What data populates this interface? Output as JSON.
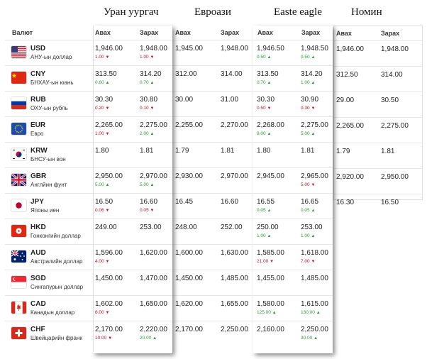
{
  "banks": [
    {
      "name": "Уран уургач",
      "buy": "Авах",
      "sell": "Зарах"
    },
    {
      "name": "Евроази",
      "buy": "Авах",
      "sell": "Зарах"
    },
    {
      "name": "Easte eagle",
      "buy": "Авах",
      "sell": "Зарах"
    },
    {
      "name": "Номин",
      "buy": "Авах",
      "sell": "Зарах"
    }
  ],
  "currency_header": "Валют",
  "currencies": [
    {
      "code": "USD",
      "name": "АНУ-ын доллар",
      "flag": "us-flag-icon"
    },
    {
      "code": "CNY",
      "name": "БНХАУ-ын юань",
      "flag": "cn-flag-icon"
    },
    {
      "code": "RUB",
      "name": "ОХУ-ын рубль",
      "flag": "ru-flag-icon"
    },
    {
      "code": "EUR",
      "name": "Евро",
      "flag": "eu-flag-icon"
    },
    {
      "code": "KRW",
      "name": "БНСУ-ын вон",
      "flag": "kr-flag-icon"
    },
    {
      "code": "GBR",
      "name": "Англйин фунт",
      "flag": "gb-flag-icon"
    },
    {
      "code": "JPY",
      "name": "Японы иен",
      "flag": "jp-flag-icon"
    },
    {
      "code": "HKD",
      "name": "Гонконгийн доллар",
      "flag": "hk-flag-icon"
    },
    {
      "code": "AUD",
      "name": "Австралийн доллар",
      "flag": "au-flag-icon"
    },
    {
      "code": "SGD",
      "name": "Сингапурын доллар",
      "flag": "sg-flag-icon"
    },
    {
      "code": "CAD",
      "name": "Канадын доллар",
      "flag": "ca-flag-icon"
    },
    {
      "code": "CHF",
      "name": "Швейцарийн франк",
      "flag": "ch-flag-icon"
    }
  ],
  "rates": {
    "uran": [
      {
        "buy": "1,946.00",
        "buy_chg": "1.00",
        "buy_dir": "down",
        "sell": "1,948.00",
        "sell_chg": "1.00",
        "sell_dir": "down"
      },
      {
        "buy": "313.50",
        "buy_chg": "0.60",
        "buy_dir": "up",
        "sell": "314.20",
        "sell_chg": "0.70",
        "sell_dir": "up"
      },
      {
        "buy": "30.30",
        "buy_chg": "0.20",
        "buy_dir": "down",
        "sell": "30.80",
        "sell_chg": "0.10",
        "sell_dir": "down"
      },
      {
        "buy": "2,265.00",
        "buy_chg": "1.00",
        "buy_dir": "down",
        "sell": "2,275.00",
        "sell_chg": "2.00",
        "sell_dir": "up"
      },
      {
        "buy": "1.80",
        "buy_chg": "",
        "buy_dir": "",
        "sell": "1.81",
        "sell_chg": "",
        "sell_dir": ""
      },
      {
        "buy": "2,950.00",
        "buy_chg": "5.00",
        "buy_dir": "up",
        "sell": "2,970.00",
        "sell_chg": "5.00",
        "sell_dir": "up"
      },
      {
        "buy": "16.50",
        "buy_chg": "0.06",
        "buy_dir": "down",
        "sell": "16.60",
        "sell_chg": "0.05",
        "sell_dir": "down"
      },
      {
        "buy": "249.00",
        "buy_chg": "",
        "buy_dir": "",
        "sell": "253.00",
        "sell_chg": "",
        "sell_dir": ""
      },
      {
        "buy": "1,596.00",
        "buy_chg": "4.00",
        "buy_dir": "down",
        "sell": "1,620.00",
        "sell_chg": "",
        "sell_dir": ""
      },
      {
        "buy": "1,450.00",
        "buy_chg": "",
        "buy_dir": "",
        "sell": "1,470.00",
        "sell_chg": "",
        "sell_dir": ""
      },
      {
        "buy": "1,602.00",
        "buy_chg": "8.00",
        "buy_dir": "down",
        "sell": "1,650.00",
        "sell_chg": "",
        "sell_dir": ""
      },
      {
        "buy": "2,170.00",
        "buy_chg": "10.00",
        "buy_dir": "down",
        "sell": "2,220.00",
        "sell_chg": "20.00",
        "sell_dir": "up"
      }
    ],
    "euroasia": [
      {
        "buy": "1,945.00",
        "sell": "1,948.00"
      },
      {
        "buy": "312.00",
        "sell": "314.00"
      },
      {
        "buy": "30.00",
        "sell": "31.00"
      },
      {
        "buy": "2,255.00",
        "sell": "2,270.00"
      },
      {
        "buy": "1.79",
        "sell": "1.81"
      },
      {
        "buy": "2,930.00",
        "sell": "2,970.00"
      },
      {
        "buy": "16.45",
        "sell": "16.60"
      },
      {
        "buy": "248.00",
        "sell": "252.00"
      },
      {
        "buy": "1,600.00",
        "sell": "1,630.00"
      },
      {
        "buy": "1,450.00",
        "sell": "1,485.00"
      },
      {
        "buy": "1,620.00",
        "sell": "1,655.00"
      },
      {
        "buy": "2,170.00",
        "sell": "2,250.00"
      }
    ],
    "eagle": [
      {
        "buy": "1,946.50",
        "buy_chg": "0.50",
        "buy_dir": "up",
        "sell": "1,948.50",
        "sell_chg": "0.50",
        "sell_dir": "up"
      },
      {
        "buy": "313.50",
        "buy_chg": "0.70",
        "buy_dir": "up",
        "sell": "314.20",
        "sell_chg": "1.00",
        "sell_dir": "up"
      },
      {
        "buy": "30.30",
        "buy_chg": "0.50",
        "buy_dir": "down",
        "sell": "30.90",
        "sell_chg": "0.30",
        "sell_dir": "down"
      },
      {
        "buy": "2,268.00",
        "buy_chg": "8.00",
        "buy_dir": "up",
        "sell": "2,275.00",
        "sell_chg": "5.00",
        "sell_dir": "up"
      },
      {
        "buy": "1.80",
        "buy_chg": "",
        "buy_dir": "",
        "sell": "1.81",
        "sell_chg": "",
        "sell_dir": ""
      },
      {
        "buy": "2,945.00",
        "buy_chg": "",
        "buy_dir": "",
        "sell": "2,965.00",
        "sell_chg": "5.00",
        "sell_dir": "down"
      },
      {
        "buy": "16.55",
        "buy_chg": "0.05",
        "buy_dir": "up",
        "sell": "16.65",
        "sell_chg": "0.05",
        "sell_dir": "up"
      },
      {
        "buy": "250.00",
        "buy_chg": "1.00",
        "buy_dir": "up",
        "sell": "253.00",
        "sell_chg": "1.00",
        "sell_dir": "up"
      },
      {
        "buy": "1,585.00",
        "buy_chg": "21.00",
        "buy_dir": "down",
        "sell": "1,618.00",
        "sell_chg": "7.00",
        "sell_dir": "down"
      },
      {
        "buy": "1,455.00",
        "buy_chg": "",
        "buy_dir": "",
        "sell": "1,485.00",
        "sell_chg": "",
        "sell_dir": ""
      },
      {
        "buy": "1,580.00",
        "buy_chg": "125.00",
        "buy_dir": "up",
        "sell": "1,615.00",
        "sell_chg": "130.00",
        "sell_dir": "up"
      },
      {
        "buy": "2,160.00",
        "buy_chg": "",
        "buy_dir": "",
        "sell": "2,250.00",
        "sell_chg": "30.00",
        "sell_dir": "up"
      }
    ],
    "nomin": [
      {
        "buy": "1,946.00",
        "sell": "1,948.00"
      },
      {
        "buy": "312.50",
        "sell": "314.00"
      },
      {
        "buy": "29.00",
        "sell": "30.50"
      },
      {
        "buy": "2,265.00",
        "sell": "2,275.00"
      },
      {
        "buy": "1.79",
        "sell": "1.81"
      },
      {
        "buy": "2,920.00",
        "sell": "2,950.00"
      },
      {
        "buy": "16.30",
        "sell": "16.50"
      }
    ]
  },
  "colors": {
    "up": "#2e9a3a",
    "down": "#c8102e"
  }
}
